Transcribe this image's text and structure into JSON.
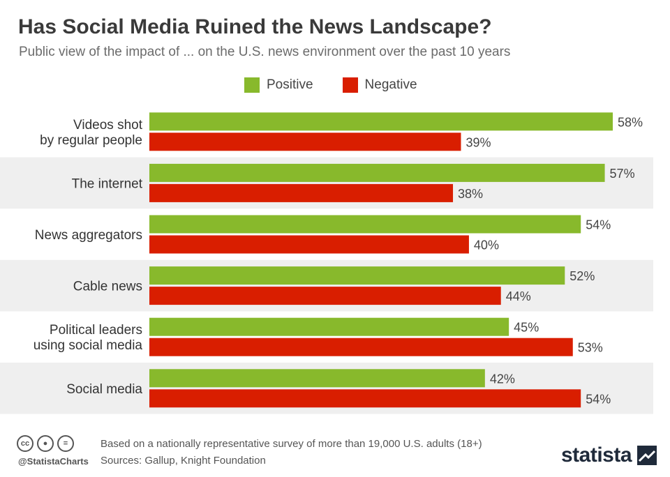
{
  "header": {
    "title": "Has Social Media Ruined the News Landscape?",
    "subtitle": "Public view of the impact of ... on the U.S. news environment over the past 10 years"
  },
  "legend": [
    {
      "label": "Positive",
      "color": "#88b92c"
    },
    {
      "label": "Negative",
      "color": "#d91e00"
    }
  ],
  "chart_data": {
    "type": "bar",
    "orientation": "horizontal",
    "categories": [
      [
        "Videos shot",
        "by regular people"
      ],
      [
        "The internet"
      ],
      [
        "News aggregators"
      ],
      [
        "Cable news"
      ],
      [
        "Political leaders",
        "using social media"
      ],
      [
        "Social media"
      ]
    ],
    "series": [
      {
        "name": "Positive",
        "color": "#88b92c",
        "values": [
          58,
          57,
          54,
          52,
          45,
          42
        ],
        "labels": [
          "58%",
          "57%",
          "54%",
          "52%",
          "45%",
          "42%"
        ]
      },
      {
        "name": "Negative",
        "color": "#d91e00",
        "values": [
          39,
          38,
          40,
          44,
          53,
          54
        ],
        "labels": [
          "39%",
          "38%",
          "40%",
          "44%",
          "53%",
          "54%"
        ]
      }
    ],
    "xlim": [
      0,
      58
    ],
    "value_suffix": "%",
    "grid": false,
    "legend_position": "top-center"
  },
  "footer": {
    "note": "Based on a nationally representative survey of more than 19,000 U.S. adults (18+)",
    "sources": "Sources: Gallup, Knight Foundation",
    "handle": "@StatistaCharts",
    "brand": "statista",
    "license_icons": [
      "cc-icon",
      "by-icon",
      "nd-icon"
    ]
  }
}
